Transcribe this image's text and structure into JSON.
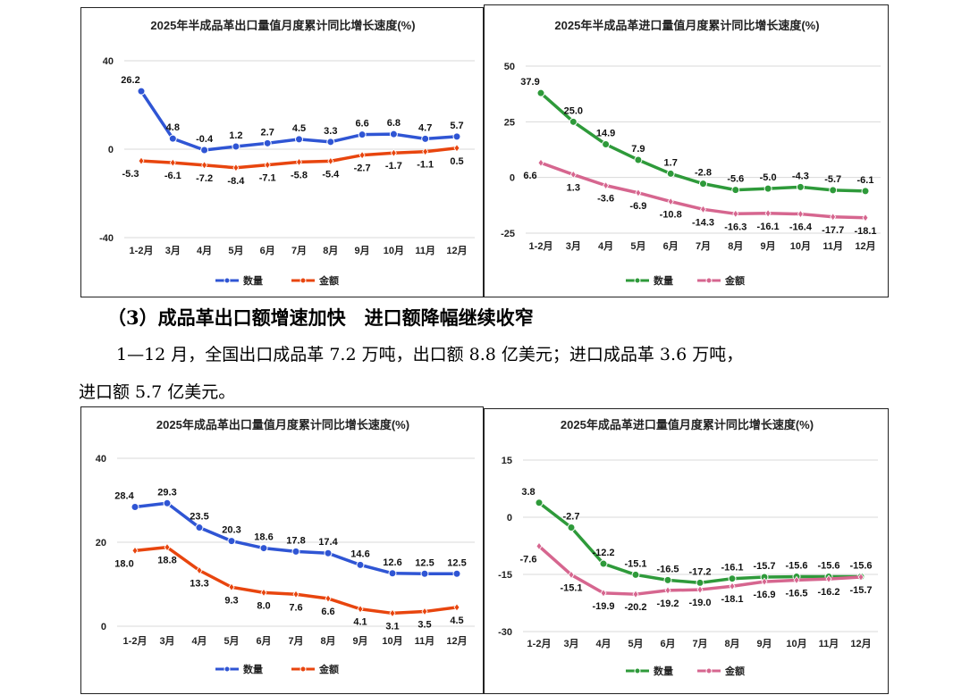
{
  "heading": "（3）成品革出口额增速加快　进口额降幅继续收窄",
  "paragraph": [
    "1—12 月，全国出口成品革 7.2 万吨，出口额 8.8 亿美元；进口成品革 3.6 万吨，",
    "进口额 5.7 亿美元。"
  ],
  "chart_data": [
    {
      "type": "line",
      "title": "2025年半成品革出口量值月度累计同比增长速度(%)",
      "categories": [
        "1-2月",
        "3月",
        "4月",
        "5月",
        "6月",
        "7月",
        "8月",
        "9月",
        "10月",
        "11月",
        "12月"
      ],
      "ylim": [
        -40,
        40
      ],
      "yticks": [
        40,
        0,
        -40
      ],
      "legend": "bottom",
      "series": [
        {
          "name": "数量",
          "color": "#2f55d4",
          "values": [
            26.2,
            4.8,
            -0.4,
            1.2,
            2.7,
            4.5,
            3.3,
            6.6,
            6.8,
            4.7,
            5.7
          ]
        },
        {
          "name": "金额",
          "color": "#e8450e",
          "values": [
            -5.3,
            -6.1,
            -7.2,
            -8.4,
            -7.1,
            -5.8,
            -5.4,
            -2.7,
            -1.7,
            -1.1,
            0.5
          ]
        }
      ]
    },
    {
      "type": "line",
      "title": "2025年半成品革进口量值月度累计同比增长速度(%)",
      "categories": [
        "1-2月",
        "3月",
        "4月",
        "5月",
        "6月",
        "7月",
        "8月",
        "9月",
        "10月",
        "11月",
        "12月"
      ],
      "ylim": [
        -25,
        50
      ],
      "yticks": [
        50,
        25,
        0,
        -25
      ],
      "legend": "bottom",
      "series": [
        {
          "name": "数量",
          "color": "#2e9a3a",
          "values": [
            37.9,
            25.0,
            14.9,
            7.9,
            1.7,
            -2.8,
            -5.6,
            -5.0,
            -4.3,
            -5.7,
            -6.1
          ]
        },
        {
          "name": "金额",
          "color": "#d6668f",
          "values": [
            6.6,
            1.3,
            -3.6,
            -6.9,
            -10.8,
            -14.3,
            -16.3,
            -16.1,
            -16.4,
            -17.7,
            -18.1
          ]
        }
      ]
    },
    {
      "type": "line",
      "title": "2025年成品革出口量值月度累计同比增长速度(%)",
      "categories": [
        "1-2月",
        "3月",
        "4月",
        "5月",
        "6月",
        "7月",
        "8月",
        "9月",
        "10月",
        "11月",
        "12月"
      ],
      "ylim": [
        0,
        40
      ],
      "yticks": [
        40,
        20,
        0
      ],
      "legend": "bottom",
      "series": [
        {
          "name": "数量",
          "color": "#2f55d4",
          "values": [
            28.4,
            29.3,
            23.5,
            20.3,
            18.6,
            17.8,
            17.4,
            14.6,
            12.6,
            12.5,
            12.5
          ]
        },
        {
          "name": "金额",
          "color": "#e8450e",
          "values": [
            18.0,
            18.8,
            13.3,
            9.3,
            8.0,
            7.6,
            6.6,
            4.1,
            3.1,
            3.5,
            4.5
          ]
        }
      ]
    },
    {
      "type": "line",
      "title": "2025年成品革进口量值月度累计同比增长速度(%)",
      "categories": [
        "1-2月",
        "3月",
        "4月",
        "5月",
        "6月",
        "7月",
        "8月",
        "9月",
        "10月",
        "11月",
        "12月"
      ],
      "ylim": [
        -30,
        15
      ],
      "yticks": [
        15,
        0,
        -15,
        -30
      ],
      "legend": "bottom",
      "series": [
        {
          "name": "数量",
          "color": "#2e9a3a",
          "values": [
            3.8,
            -2.7,
            -12.2,
            -15.1,
            -16.5,
            -17.2,
            -16.1,
            -15.7,
            -15.6,
            -15.6,
            -15.6
          ]
        },
        {
          "name": "金额",
          "color": "#d6668f",
          "values": [
            -7.6,
            -15.1,
            -19.9,
            -20.2,
            -19.2,
            -19.0,
            -18.1,
            -16.9,
            -16.5,
            -16.2,
            -15.7
          ]
        }
      ]
    }
  ]
}
